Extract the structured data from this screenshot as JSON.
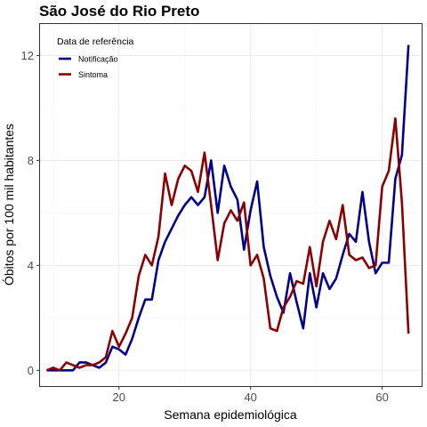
{
  "chart_data": {
    "type": "line",
    "title": "São José do Rio Preto",
    "xlabel": "Semana epidemiológica",
    "ylabel": "Óbitos por 100 mil habitantes",
    "xlim": [
      8,
      66
    ],
    "ylim": [
      -0.6,
      13.2
    ],
    "x_ticks": [
      20,
      40,
      60
    ],
    "y_ticks": [
      0,
      4,
      8,
      12
    ],
    "x_tick_labels": [
      "20",
      "40",
      "60"
    ],
    "y_tick_labels": [
      "0",
      "4",
      "8",
      "12"
    ],
    "grid": true,
    "legend": {
      "title": "Data de referência",
      "position": "top-left"
    },
    "series": [
      {
        "name": "Notificação",
        "color": "#00008b",
        "x": [
          9,
          10,
          11,
          12,
          13,
          14,
          15,
          16,
          17,
          18,
          19,
          20,
          21,
          22,
          23,
          24,
          25,
          26,
          27,
          28,
          29,
          30,
          31,
          32,
          33,
          34,
          35,
          36,
          37,
          38,
          39,
          40,
          41,
          42,
          43,
          44,
          45,
          46,
          47,
          48,
          49,
          50,
          51,
          52,
          53,
          54,
          55,
          56,
          57,
          58,
          59,
          60,
          61,
          62,
          63,
          64
        ],
        "y": [
          0.0,
          0.0,
          0.0,
          0.0,
          0.0,
          0.3,
          0.3,
          0.2,
          0.1,
          0.3,
          0.9,
          0.8,
          0.6,
          1.2,
          2.0,
          2.7,
          2.7,
          4.2,
          4.9,
          5.4,
          5.9,
          6.3,
          6.6,
          6.3,
          6.6,
          8.0,
          6.0,
          7.8,
          7.0,
          6.5,
          4.6,
          6.1,
          7.2,
          4.7,
          3.6,
          2.8,
          2.2,
          3.7,
          2.6,
          1.6,
          3.7,
          2.4,
          3.7,
          3.1,
          3.5,
          4.4,
          5.2,
          4.9,
          6.8,
          4.9,
          3.7,
          4.1,
          4.1,
          7.3,
          8.2,
          12.4
        ]
      },
      {
        "name": "Sintoma",
        "color": "#8b0000",
        "x": [
          9,
          10,
          11,
          12,
          13,
          14,
          15,
          16,
          17,
          18,
          19,
          20,
          21,
          22,
          23,
          24,
          25,
          26,
          27,
          28,
          29,
          30,
          31,
          32,
          33,
          34,
          35,
          36,
          37,
          38,
          39,
          40,
          41,
          42,
          43,
          44,
          45,
          46,
          47,
          48,
          49,
          50,
          51,
          52,
          53,
          54,
          55,
          56,
          57,
          58,
          59,
          60,
          61,
          62,
          63,
          64
        ],
        "y": [
          0.0,
          0.1,
          0.0,
          0.3,
          0.2,
          0.1,
          0.2,
          0.2,
          0.3,
          0.5,
          1.5,
          0.9,
          1.4,
          2.0,
          3.6,
          4.4,
          4.0,
          5.1,
          7.5,
          6.3,
          7.3,
          7.8,
          7.6,
          6.8,
          8.3,
          6.3,
          4.2,
          5.6,
          6.1,
          5.7,
          6.4,
          4.0,
          4.4,
          3.5,
          1.6,
          1.5,
          2.4,
          2.8,
          3.4,
          3.3,
          4.7,
          3.2,
          4.9,
          5.7,
          5.0,
          6.3,
          4.4,
          4.2,
          4.3,
          3.9,
          4.0,
          7.0,
          7.6,
          9.6,
          6.4,
          1.4
        ]
      }
    ]
  }
}
